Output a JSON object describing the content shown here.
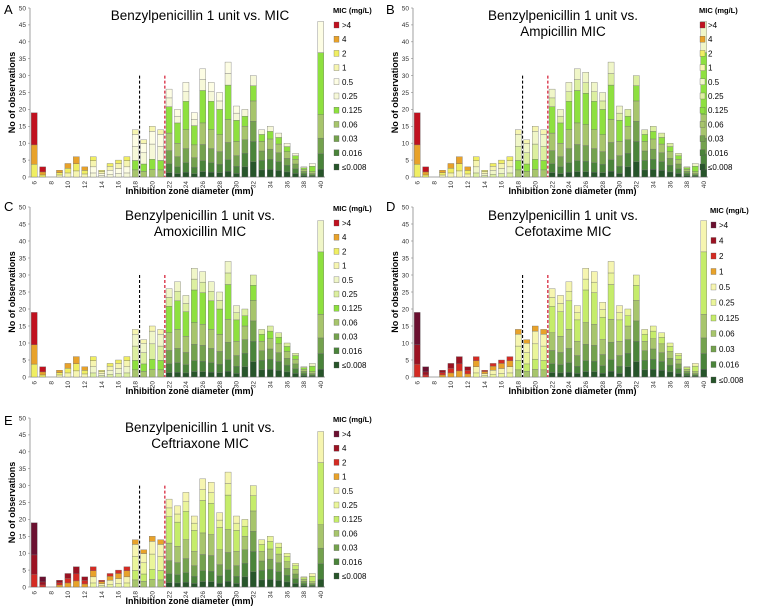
{
  "chart_data": [
    {
      "panel": "A",
      "type": "bar",
      "stacked": true,
      "title": [
        "Benzylpenicillin 1 unit vs. MIC"
      ],
      "xlabel": "Inhibition zone diameter (mm)",
      "ylabel": "No of observations",
      "ylim": [
        0,
        50
      ],
      "yticks": [
        0,
        5,
        10,
        15,
        20,
        25,
        30,
        35,
        40,
        45,
        50
      ],
      "xtick_labels": [
        "6",
        "8",
        "10",
        "12",
        "14",
        "16",
        "18",
        "20",
        "22",
        "24",
        "26",
        "28",
        "30",
        "32",
        "34",
        "36",
        "38",
        "40"
      ],
      "categories": [
        6,
        7,
        8,
        9,
        10,
        11,
        12,
        13,
        14,
        15,
        16,
        17,
        18,
        19,
        20,
        21,
        22,
        23,
        24,
        25,
        26,
        27,
        28,
        29,
        30,
        31,
        32,
        33,
        34,
        35,
        36,
        37,
        38,
        39,
        40
      ],
      "totals": [
        19,
        3,
        0,
        2,
        4,
        6,
        3,
        6,
        2,
        4,
        5,
        6,
        14,
        11,
        15,
        14,
        26,
        20,
        28,
        19,
        32,
        28,
        25,
        34,
        21,
        20,
        30,
        14,
        15,
        13,
        10,
        7,
        3,
        4,
        46
      ],
      "legend_title": "MIC (mg/L)",
      "legend": [
        ">4",
        "4",
        "2",
        "1",
        "0.5",
        "0.25",
        "0.125",
        "0.06",
        "0.03",
        "0.016",
        "≤0.008"
      ],
      "colors": [
        "#c0111f",
        "#e8a22a",
        "#f0ee62",
        "#f6f5b0",
        "#fdfde4",
        "#f6f8d8",
        "#8ee03f",
        "#a7c56c",
        "#74a24e",
        "#4a843a",
        "#27552a"
      ],
      "black_dashed_at": 19,
      "red_dashed_at": 22
    },
    {
      "panel": "B",
      "type": "bar",
      "stacked": true,
      "title": [
        "Benzylpenicillin 1 unit vs.",
        "Ampicillin MIC"
      ],
      "xlabel": "Inhibition zone diameter (mm)",
      "ylabel": "No of observations",
      "ylim": [
        0,
        50
      ],
      "yticks": [
        0,
        5,
        10,
        15,
        20,
        25,
        30,
        35,
        40,
        45,
        50
      ],
      "xtick_labels": [
        "6",
        "8",
        "10",
        "12",
        "14",
        "16",
        "18",
        "20",
        "22",
        "24",
        "26",
        "28",
        "30",
        "32",
        "34",
        "36",
        "38",
        "40"
      ],
      "categories": [
        6,
        7,
        8,
        9,
        10,
        11,
        12,
        13,
        14,
        15,
        16,
        17,
        18,
        19,
        20,
        21,
        22,
        23,
        24,
        25,
        26,
        27,
        28,
        29,
        30,
        31,
        32,
        33,
        34,
        35,
        36,
        37,
        38,
        39,
        40
      ],
      "totals": [
        19,
        3,
        0,
        2,
        4,
        6,
        3,
        6,
        2,
        4,
        5,
        6,
        14,
        11,
        15,
        14,
        26,
        20,
        28,
        32,
        31,
        28,
        25,
        34,
        21,
        20,
        30,
        14,
        15,
        13,
        10,
        7,
        3,
        4,
        46
      ],
      "legend_title": "MIC (mg/L)",
      "legend": [
        ">4",
        "4",
        "2",
        "1",
        "0.5",
        "0.25",
        "0.125",
        "0.06",
        "0.03",
        "0.016",
        "≤0.008"
      ],
      "colors": [
        "#c0111f",
        "#e8a22a",
        "#f0ee62",
        "#f6f5b0",
        "#f0f6c8",
        "#dcefa0",
        "#8ee03f",
        "#a7c56c",
        "#74a24e",
        "#4a843a",
        "#27552a"
      ],
      "black_dashed_at": 19,
      "red_dashed_at": 22
    },
    {
      "panel": "C",
      "type": "bar",
      "stacked": true,
      "title": [
        "Benzylpenicillin 1 unit vs.",
        "Amoxicillin MIC"
      ],
      "xlabel": "Inhibition zone diameter (mm)",
      "ylabel": "No of observations",
      "ylim": [
        0,
        50
      ],
      "yticks": [
        0,
        5,
        10,
        15,
        20,
        25,
        30,
        35,
        40,
        45,
        50
      ],
      "xtick_labels": [
        "6",
        "8",
        "10",
        "12",
        "14",
        "16",
        "18",
        "20",
        "22",
        "24",
        "26",
        "28",
        "30",
        "32",
        "34",
        "36",
        "38",
        "40"
      ],
      "categories": [
        6,
        7,
        8,
        9,
        10,
        11,
        12,
        13,
        14,
        15,
        16,
        17,
        18,
        19,
        20,
        21,
        22,
        23,
        24,
        25,
        26,
        27,
        28,
        29,
        30,
        31,
        32,
        33,
        34,
        35,
        36,
        37,
        38,
        39,
        40
      ],
      "totals": [
        19,
        3,
        0,
        2,
        4,
        6,
        3,
        6,
        2,
        4,
        5,
        6,
        14,
        11,
        15,
        14,
        26,
        28,
        24,
        32,
        31,
        28,
        25,
        34,
        21,
        20,
        30,
        14,
        15,
        13,
        10,
        7,
        3,
        4,
        46
      ],
      "legend_title": "MIC (mg/L)",
      "legend": [
        ">4",
        "4",
        "2",
        "1",
        "0.5",
        "0.25",
        "0.125",
        "0.06",
        "0.03",
        "0.016",
        "≤0.008"
      ],
      "colors": [
        "#c0111f",
        "#e8a22a",
        "#f0ee62",
        "#f6f5b0",
        "#f0f6c8",
        "#dcefa0",
        "#8ee03f",
        "#a7c56c",
        "#74a24e",
        "#4a843a",
        "#27552a"
      ],
      "black_dashed_at": 19,
      "red_dashed_at": 22
    },
    {
      "panel": "D",
      "type": "bar",
      "stacked": true,
      "title": [
        "Benzylpenicillin 1 unit vs.",
        "Cefotaxime MIC"
      ],
      "xlabel": "Inhibition zone diameter (mm)",
      "ylabel": "No of observations",
      "ylim": [
        0,
        50
      ],
      "yticks": [
        0,
        5,
        10,
        15,
        20,
        25,
        30,
        35,
        40,
        45,
        50
      ],
      "xtick_labels": [
        "6",
        "8",
        "10",
        "12",
        "14",
        "16",
        "18",
        "20",
        "22",
        "24",
        "26",
        "28",
        "30",
        "32",
        "34",
        "36",
        "38",
        "40"
      ],
      "categories": [
        6,
        7,
        8,
        9,
        10,
        11,
        12,
        13,
        14,
        15,
        16,
        17,
        18,
        19,
        20,
        21,
        22,
        23,
        24,
        25,
        26,
        27,
        28,
        29,
        30,
        31,
        32,
        33,
        34,
        35,
        36,
        37,
        38,
        39,
        40
      ],
      "totals": [
        19,
        3,
        0,
        2,
        4,
        6,
        3,
        6,
        2,
        4,
        5,
        6,
        14,
        11,
        15,
        14,
        26,
        24,
        28,
        21,
        32,
        31,
        22,
        34,
        21,
        20,
        30,
        14,
        15,
        13,
        10,
        7,
        3,
        4,
        46
      ],
      "legend_title": "MIC (mg/L)",
      "legend": [
        ">4",
        "4",
        "2",
        "1",
        "0.5",
        "0.25",
        "0.125",
        "0.06",
        "0.03",
        "0.016",
        "≤0.008"
      ],
      "colors": [
        "#6b1030",
        "#9b1222",
        "#d42b23",
        "#e8a22a",
        "#f6f5b0",
        "#eaf59a",
        "#c5ec6a",
        "#a7c56c",
        "#74a24e",
        "#4a843a",
        "#27552a"
      ],
      "black_dashed_at": 19,
      "red_dashed_at": 22
    },
    {
      "panel": "E",
      "type": "bar",
      "stacked": true,
      "title": [
        "Benzylpenicillin 1 unit vs.",
        "Ceftriaxone MIC"
      ],
      "xlabel": "Inhibition zone diameter (mm)",
      "ylabel": "No of observations",
      "ylim": [
        0,
        50
      ],
      "yticks": [
        0,
        5,
        10,
        15,
        20,
        25,
        30,
        35,
        40,
        45,
        50
      ],
      "xtick_labels": [
        "6",
        "8",
        "10",
        "12",
        "14",
        "16",
        "18",
        "20",
        "22",
        "24",
        "26",
        "28",
        "30",
        "32",
        "34",
        "36",
        "38",
        "40"
      ],
      "categories": [
        6,
        7,
        8,
        9,
        10,
        11,
        12,
        13,
        14,
        15,
        16,
        17,
        18,
        19,
        20,
        21,
        22,
        23,
        24,
        25,
        26,
        27,
        28,
        29,
        30,
        31,
        32,
        33,
        34,
        35,
        36,
        37,
        38,
        39,
        40
      ],
      "totals": [
        19,
        3,
        0,
        2,
        4,
        6,
        3,
        6,
        2,
        4,
        5,
        6,
        14,
        11,
        15,
        14,
        26,
        24,
        28,
        21,
        32,
        31,
        22,
        34,
        21,
        20,
        30,
        14,
        15,
        13,
        10,
        7,
        3,
        4,
        46
      ],
      "legend_title": "MIC (mg/L)",
      "legend": [
        ">4",
        "4",
        "2",
        "1",
        "0.5",
        "0.25",
        "0.125",
        "0.06",
        "0.03",
        "0.016",
        "≤0.008"
      ],
      "colors": [
        "#6b1030",
        "#9b1222",
        "#d42b23",
        "#e8a22a",
        "#f6f5b0",
        "#eaf59a",
        "#c5ec6a",
        "#a7c56c",
        "#74a24e",
        "#4a843a",
        "#27552a"
      ],
      "black_dashed_at": 19,
      "red_dashed_at": 22
    }
  ]
}
